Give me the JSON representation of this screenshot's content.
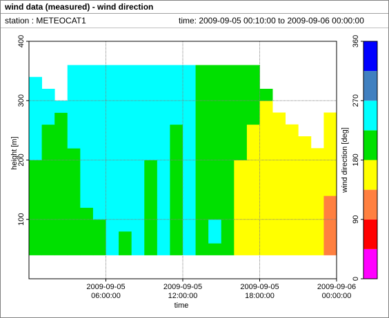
{
  "header": {
    "title": "wind data (measured) - wind direction",
    "station": "station : METEOCAT1",
    "time": "time: 2009-09-05 00:10:00 to 2009-09-06 00:00:00"
  },
  "chart_data": {
    "type": "heatmap",
    "xlabel": "time",
    "ylabel": "height [m]",
    "zlabel": "wind direction [deg]",
    "xlim": [
      "2009-09-05T00:00",
      "2009-09-06T00:00"
    ],
    "xticks": [
      {
        "value": "2009-09-05T06:00",
        "label": "2009-09-05\n06:00:00"
      },
      {
        "value": "2009-09-05T12:00",
        "label": "2009-09-05\n12:00:00"
      },
      {
        "value": "2009-09-05T18:00",
        "label": "2009-09-05\n18:00:00"
      },
      {
        "value": "2009-09-06T00:00",
        "label": "2009-09-06\n00:00:00"
      }
    ],
    "ylim": [
      0,
      400
    ],
    "yticks": [
      100,
      200,
      300,
      400
    ],
    "grid": true,
    "zlim": [
      0,
      360
    ],
    "zticks": [
      0,
      90,
      180,
      270,
      360
    ],
    "colors": [
      "#ff00ff",
      "#ff0000",
      "#ff8040",
      "#ffff00",
      "#00e000",
      "#00ffff",
      "#4080c0",
      "#0000ff"
    ],
    "x": [
      "2009-09-05T00:00",
      "2009-09-05T01:00",
      "2009-09-05T02:00",
      "2009-09-05T03:00",
      "2009-09-05T04:00",
      "2009-09-05T05:00",
      "2009-09-05T06:00",
      "2009-09-05T07:00",
      "2009-09-05T08:00",
      "2009-09-05T09:00",
      "2009-09-05T10:00",
      "2009-09-05T11:00",
      "2009-09-05T12:00",
      "2009-09-05T13:00",
      "2009-09-05T14:00",
      "2009-09-05T15:00",
      "2009-09-05T16:00",
      "2009-09-05T17:00",
      "2009-09-05T18:00",
      "2009-09-05T19:00",
      "2009-09-05T20:00",
      "2009-09-05T21:00",
      "2009-09-05T22:00",
      "2009-09-05T23:00"
    ],
    "y": [
      40,
      60,
      80,
      100,
      120,
      140,
      160,
      180,
      200,
      220,
      240,
      260,
      280,
      300,
      320,
      340
    ],
    "z": [
      [
        200,
        200,
        200,
        200,
        200,
        200,
        250,
        200,
        250,
        200,
        250,
        200,
        250,
        200,
        200,
        200,
        160,
        160,
        160,
        160,
        160,
        160,
        160,
        120
      ],
      [
        200,
        200,
        200,
        200,
        200,
        200,
        250,
        200,
        250,
        200,
        250,
        200,
        250,
        200,
        250,
        200,
        160,
        160,
        160,
        160,
        160,
        160,
        160,
        120
      ],
      [
        200,
        200,
        200,
        200,
        200,
        200,
        250,
        250,
        250,
        200,
        250,
        200,
        250,
        200,
        250,
        200,
        160,
        160,
        160,
        160,
        160,
        160,
        160,
        120
      ],
      [
        200,
        200,
        200,
        200,
        200,
        250,
        250,
        250,
        250,
        200,
        250,
        200,
        250,
        200,
        200,
        200,
        160,
        160,
        160,
        160,
        160,
        160,
        160,
        120
      ],
      [
        200,
        200,
        200,
        200,
        250,
        250,
        250,
        250,
        250,
        200,
        250,
        200,
        250,
        200,
        200,
        200,
        160,
        160,
        160,
        160,
        160,
        160,
        160,
        120
      ],
      [
        200,
        200,
        200,
        200,
        250,
        250,
        250,
        250,
        250,
        200,
        250,
        200,
        250,
        200,
        200,
        200,
        160,
        160,
        160,
        160,
        160,
        160,
        160,
        160
      ],
      [
        200,
        200,
        200,
        200,
        250,
        250,
        250,
        250,
        250,
        200,
        250,
        200,
        250,
        200,
        200,
        200,
        160,
        160,
        160,
        160,
        160,
        160,
        160,
        160
      ],
      [
        200,
        200,
        200,
        200,
        250,
        250,
        250,
        250,
        250,
        200,
        250,
        200,
        250,
        200,
        200,
        200,
        160,
        160,
        160,
        160,
        160,
        160,
        160,
        160
      ],
      [
        250,
        200,
        200,
        200,
        250,
        250,
        250,
        250,
        250,
        250,
        250,
        200,
        250,
        200,
        200,
        200,
        200,
        160,
        160,
        160,
        160,
        160,
        160,
        160
      ],
      [
        250,
        200,
        200,
        250,
        250,
        250,
        250,
        250,
        250,
        250,
        250,
        200,
        250,
        200,
        200,
        200,
        200,
        160,
        160,
        160,
        160,
        160,
        null,
        160
      ],
      [
        250,
        200,
        200,
        250,
        250,
        250,
        250,
        250,
        250,
        250,
        250,
        200,
        250,
        200,
        200,
        200,
        200,
        160,
        160,
        160,
        160,
        null,
        null,
        160
      ],
      [
        250,
        250,
        200,
        250,
        250,
        250,
        250,
        250,
        250,
        250,
        250,
        250,
        250,
        200,
        200,
        200,
        200,
        200,
        160,
        160,
        null,
        null,
        null,
        160
      ],
      [
        250,
        250,
        250,
        250,
        250,
        250,
        250,
        250,
        250,
        250,
        250,
        250,
        250,
        200,
        200,
        200,
        200,
        200,
        160,
        null,
        null,
        null,
        null,
        null
      ],
      [
        250,
        250,
        null,
        250,
        250,
        250,
        250,
        250,
        250,
        250,
        250,
        250,
        250,
        200,
        200,
        200,
        200,
        200,
        200,
        null,
        null,
        null,
        null,
        null
      ],
      [
        250,
        null,
        null,
        250,
        250,
        250,
        250,
        250,
        250,
        250,
        250,
        250,
        250,
        200,
        200,
        200,
        200,
        200,
        null,
        null,
        null,
        null,
        null,
        null
      ],
      [
        null,
        null,
        null,
        250,
        250,
        250,
        250,
        250,
        250,
        250,
        250,
        250,
        250,
        200,
        200,
        200,
        200,
        200,
        null,
        null,
        null,
        null,
        null,
        null
      ]
    ]
  }
}
